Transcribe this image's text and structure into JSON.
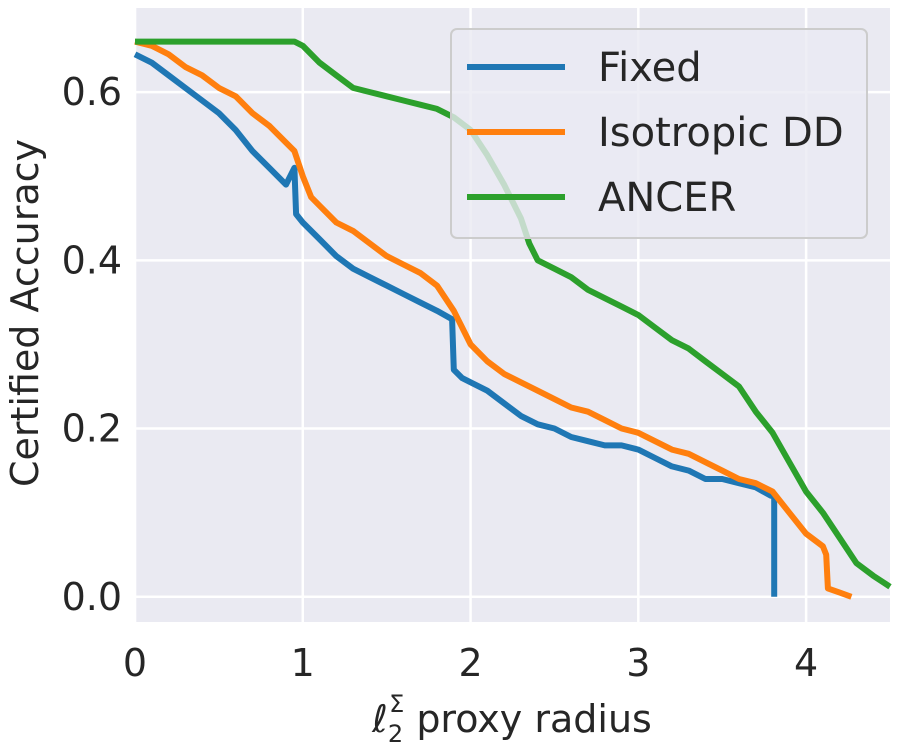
{
  "chart_data": {
    "type": "line",
    "xlabel_main": "ℓ",
    "xlabel_sub": "2",
    "xlabel_sup": "Σ",
    "xlabel_rest": "proxy radius",
    "ylabel": "Certified Accuracy",
    "xlim": [
      0,
      4.5
    ],
    "ylim": [
      -0.03,
      0.7
    ],
    "xticks": [
      0,
      1,
      2,
      3,
      4
    ],
    "xtick_labels": [
      "0",
      "1",
      "2",
      "3",
      "4"
    ],
    "yticks": [
      0.0,
      0.2,
      0.4,
      0.6
    ],
    "ytick_labels": [
      "0.0",
      "0.2",
      "0.4",
      "0.6"
    ],
    "grid": true,
    "legend_position": "top-right",
    "colors": {
      "background": "#eaeaf2",
      "grid": "#ffffff",
      "legend_frame": "#cccccc"
    },
    "series": [
      {
        "name": "Fixed",
        "color": "#1f77b4",
        "x": [
          0,
          0.1,
          0.2,
          0.3,
          0.4,
          0.5,
          0.6,
          0.7,
          0.8,
          0.9,
          0.95,
          0.96,
          1.0,
          1.1,
          1.2,
          1.3,
          1.4,
          1.5,
          1.6,
          1.7,
          1.8,
          1.89,
          1.9,
          1.95,
          2.0,
          2.1,
          2.2,
          2.3,
          2.4,
          2.5,
          2.6,
          2.7,
          2.8,
          2.9,
          3.0,
          3.1,
          3.2,
          3.3,
          3.4,
          3.5,
          3.6,
          3.7,
          3.79,
          3.8,
          3.81,
          3.81
        ],
        "y": [
          0.645,
          0.635,
          0.62,
          0.605,
          0.59,
          0.575,
          0.555,
          0.53,
          0.51,
          0.49,
          0.51,
          0.455,
          0.445,
          0.425,
          0.405,
          0.39,
          0.38,
          0.37,
          0.36,
          0.35,
          0.34,
          0.33,
          0.27,
          0.26,
          0.255,
          0.245,
          0.23,
          0.215,
          0.205,
          0.2,
          0.19,
          0.185,
          0.18,
          0.18,
          0.175,
          0.165,
          0.155,
          0.15,
          0.14,
          0.14,
          0.135,
          0.13,
          0.12,
          0.12,
          0.12,
          0.0
        ]
      },
      {
        "name": "Isotropic DD",
        "color": "#ff7f0e",
        "x": [
          0,
          0.1,
          0.2,
          0.3,
          0.4,
          0.5,
          0.6,
          0.7,
          0.8,
          0.9,
          0.95,
          1.0,
          1.05,
          1.1,
          1.2,
          1.3,
          1.4,
          1.5,
          1.6,
          1.7,
          1.8,
          1.9,
          2.0,
          2.1,
          2.2,
          2.3,
          2.4,
          2.5,
          2.6,
          2.7,
          2.8,
          2.9,
          3.0,
          3.1,
          3.2,
          3.3,
          3.4,
          3.5,
          3.6,
          3.7,
          3.8,
          3.9,
          4.0,
          4.1,
          4.12,
          4.13,
          4.2,
          4.27
        ],
        "y": [
          0.66,
          0.655,
          0.645,
          0.63,
          0.62,
          0.605,
          0.595,
          0.575,
          0.56,
          0.54,
          0.53,
          0.5,
          0.475,
          0.465,
          0.445,
          0.435,
          0.42,
          0.405,
          0.395,
          0.385,
          0.37,
          0.34,
          0.3,
          0.28,
          0.265,
          0.255,
          0.245,
          0.235,
          0.225,
          0.22,
          0.21,
          0.2,
          0.195,
          0.185,
          0.175,
          0.17,
          0.16,
          0.15,
          0.14,
          0.135,
          0.125,
          0.1,
          0.075,
          0.06,
          0.05,
          0.01,
          0.005,
          0.0
        ]
      },
      {
        "name": "ANCER",
        "color": "#2ca02c",
        "x": [
          0,
          0.5,
          0.95,
          1.0,
          1.1,
          1.2,
          1.3,
          1.4,
          1.5,
          1.6,
          1.7,
          1.8,
          1.9,
          2.0,
          2.1,
          2.2,
          2.3,
          2.35,
          2.4,
          2.5,
          2.6,
          2.7,
          2.8,
          2.9,
          3.0,
          3.1,
          3.2,
          3.3,
          3.4,
          3.5,
          3.6,
          3.7,
          3.8,
          3.9,
          4.0,
          4.1,
          4.2,
          4.3,
          4.4,
          4.5
        ],
        "y": [
          0.66,
          0.66,
          0.66,
          0.655,
          0.635,
          0.62,
          0.605,
          0.6,
          0.595,
          0.59,
          0.585,
          0.58,
          0.57,
          0.555,
          0.525,
          0.49,
          0.45,
          0.42,
          0.4,
          0.39,
          0.38,
          0.365,
          0.355,
          0.345,
          0.335,
          0.32,
          0.305,
          0.295,
          0.28,
          0.265,
          0.25,
          0.22,
          0.195,
          0.16,
          0.125,
          0.1,
          0.07,
          0.04,
          0.025,
          0.012
        ]
      }
    ]
  }
}
